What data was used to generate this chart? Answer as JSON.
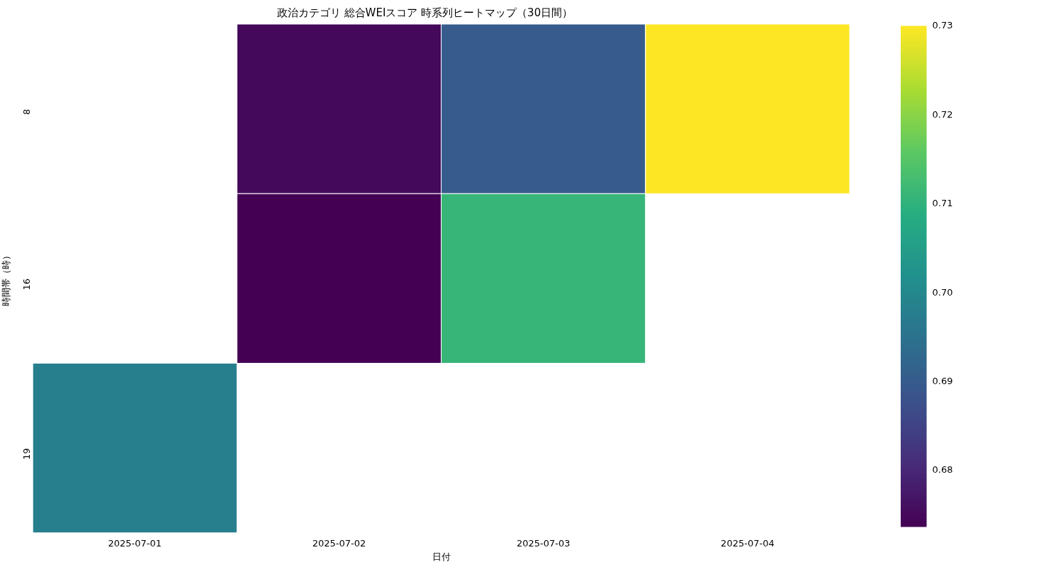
{
  "chart_data": {
    "type": "heatmap",
    "title": "政治カテゴリ 総合WEIスコア 時系列ヒートマップ（30日間）",
    "xlabel": "日付",
    "ylabel": "時間帯（時）",
    "categories": [
      "2025-07-01",
      "2025-07-02",
      "2025-07-03",
      "2025-07-04"
    ],
    "y_categories": [
      "8",
      "16",
      "19"
    ],
    "cells": [
      [
        null,
        0.675,
        0.69,
        0.73
      ],
      [
        null,
        0.6737,
        0.711,
        null
      ],
      [
        0.698,
        null,
        null,
        null
      ]
    ],
    "clim": [
      0.6737,
      0.73
    ],
    "cticks": [
      0.68,
      0.69,
      {
        "value": 0.7,
        "label": "0.70"
      },
      0.71,
      0.72,
      0.73
    ]
  }
}
